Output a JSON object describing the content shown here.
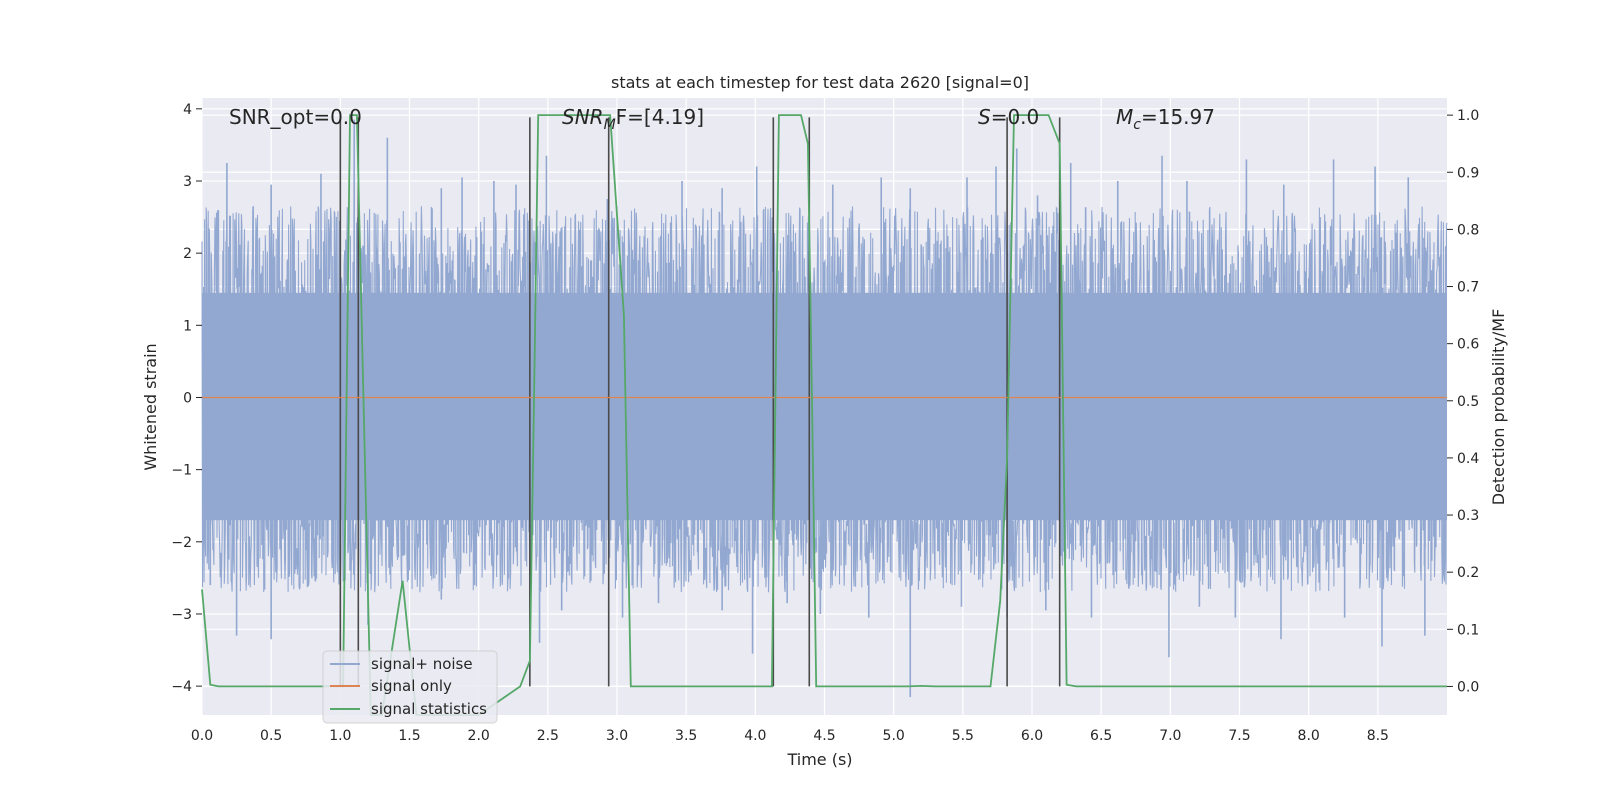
{
  "chart_data": {
    "type": "line",
    "title": "stats at each timestep for test data 2620 [signal=0]",
    "xlabel": "Time (s)",
    "ylabel_left": "Whitened strain",
    "ylabel_right": "Detection probability/MF",
    "xlim": [
      0,
      9
    ],
    "ylim_left": [
      -4.4,
      4.15
    ],
    "ylim_right": [
      -0.05,
      1.03
    ],
    "x_ticks": [
      "0.0",
      "0.5",
      "1.0",
      "1.5",
      "2.0",
      "2.5",
      "3.0",
      "3.5",
      "4.0",
      "4.5",
      "5.0",
      "5.5",
      "6.0",
      "6.5",
      "7.0",
      "7.5",
      "8.0",
      "8.5"
    ],
    "y_ticks_left": [
      "−4",
      "−3",
      "−2",
      "−1",
      "0",
      "1",
      "2",
      "3",
      "4"
    ],
    "y_ticks_right": [
      "0.0",
      "0.1",
      "0.2",
      "0.3",
      "0.4",
      "0.5",
      "0.6",
      "0.7",
      "0.8",
      "0.9",
      "1.0"
    ],
    "grid": true,
    "legend_position": "lower-left",
    "annotations": {
      "snr_opt": "SNR_opt=0.0",
      "snr_mf": "SNR",
      "snr_mf_sub": "M",
      "snr_mf_rest": "F=[4.19]",
      "s_sym": "S",
      "s_val": "=0.0",
      "mc_sym": "M",
      "mc_sub": "c",
      "mc_val": "=15.97"
    },
    "series": [
      {
        "name": "signal+ noise",
        "color": "#92a8d1",
        "axis": "left",
        "noise_band": [
          -1.7,
          1.45
        ],
        "peak_x": [
          0.18,
          0.37,
          0.5,
          0.86,
          1.1,
          1.34,
          1.73,
          1.88,
          2.11,
          2.27,
          2.49,
          2.93,
          3.47,
          3.76,
          4.01,
          4.56,
          4.91,
          5.12,
          5.53,
          5.74,
          5.89,
          6.04,
          6.28,
          6.62,
          6.94,
          7.12,
          7.55,
          7.82,
          8.18,
          8.48,
          8.72
        ],
        "peak_y": [
          3.25,
          2.65,
          2.95,
          3.1,
          3.85,
          3.6,
          2.9,
          3.05,
          3.0,
          2.95,
          3.35,
          2.75,
          3.0,
          2.9,
          3.2,
          2.95,
          3.05,
          2.9,
          3.05,
          3.2,
          3.45,
          2.8,
          3.25,
          3.0,
          3.35,
          3.0,
          3.3,
          2.95,
          3.3,
          3.2,
          3.05
        ],
        "trough_x": [
          0.06,
          0.25,
          0.5,
          0.82,
          1.0,
          1.2,
          1.73,
          1.97,
          2.44,
          2.6,
          3.04,
          3.3,
          3.76,
          3.98,
          4.23,
          4.47,
          4.82,
          5.12,
          5.49,
          5.82,
          6.1,
          6.43,
          6.7,
          6.99,
          7.21,
          7.47,
          7.8,
          8.26,
          8.53,
          8.84
        ],
        "trough_y": [
          -2.6,
          -3.3,
          -3.35,
          -2.55,
          -2.45,
          -3.15,
          -2.8,
          -2.6,
          -3.4,
          -2.95,
          -3.05,
          -2.85,
          -2.95,
          -3.55,
          -2.85,
          -3.0,
          -3.05,
          -4.15,
          -2.9,
          -3.05,
          -2.95,
          -3.05,
          -2.65,
          -3.6,
          -2.9,
          -3.05,
          -3.35,
          -3.05,
          -3.45,
          -3.3
        ]
      },
      {
        "name": "signal only",
        "color": "#dd8452",
        "axis": "left",
        "x": [
          0,
          9
        ],
        "y": [
          0,
          0
        ]
      },
      {
        "name": "signal statistics",
        "color": "#55a868",
        "axis": "right",
        "x": [
          0,
          0.06,
          0.12,
          0.5,
          1.0,
          1.02,
          1.07,
          1.12,
          1.22,
          1.3,
          1.45,
          1.55,
          1.6,
          2.0,
          2.3,
          2.37,
          2.4,
          2.43,
          2.5,
          2.9,
          2.95,
          3.05,
          3.1,
          3.5,
          4.0,
          4.12,
          4.17,
          4.2,
          4.27,
          4.33,
          4.38,
          4.41,
          4.44,
          4.5,
          5.0,
          5.1,
          5.2,
          5.3,
          5.7,
          5.77,
          5.82,
          5.87,
          6.0,
          6.12,
          6.2,
          6.25,
          6.32,
          7.0,
          8.0,
          9.0
        ],
        "y": [
          0.17,
          0.003,
          0.0,
          0.0,
          0.0,
          0.0,
          1.0,
          1.0,
          -0.05,
          -0.05,
          0.185,
          -0.05,
          -0.05,
          -0.05,
          0.0,
          0.045,
          0.5,
          1.0,
          1.0,
          1.0,
          1.0,
          0.65,
          0.0,
          0.0,
          0.0,
          0.0,
          1.0,
          1.0,
          1.0,
          1.0,
          0.95,
          0.5,
          0.0,
          0.0,
          0.0,
          0.0,
          0.001,
          0.0,
          0.0,
          0.15,
          0.4,
          1.0,
          1.0,
          1.0,
          0.95,
          0.003,
          0.0,
          0.0,
          0.0,
          0.0
        ]
      }
    ],
    "vertical_lines": [
      {
        "x": 1.0,
        "y_top": 0.996,
        "color": "#4a4a4a"
      },
      {
        "x": 1.13,
        "y_top": 0.996,
        "color": "#4a4a4a"
      },
      {
        "x": 2.37,
        "y_top": 0.996,
        "color": "#4a4a4a"
      },
      {
        "x": 2.94,
        "y_top": 0.996,
        "color": "#4a4a4a"
      },
      {
        "x": 4.13,
        "y_top": 0.996,
        "color": "#4a4a4a"
      },
      {
        "x": 4.39,
        "y_top": 0.996,
        "color": "#4a4a4a"
      },
      {
        "x": 5.82,
        "y_top": 0.996,
        "color": "#4a4a4a"
      },
      {
        "x": 6.2,
        "y_top": 0.996,
        "color": "#4a4a4a"
      }
    ],
    "right_axis_gridlines": [
      0.0,
      0.1,
      0.2,
      0.3,
      0.4,
      0.5,
      0.6,
      0.7,
      0.8,
      0.9,
      1.0
    ],
    "colors": {
      "plot_background": "#eaeaf2",
      "grid": "#ffffff",
      "text": "#262626"
    }
  }
}
